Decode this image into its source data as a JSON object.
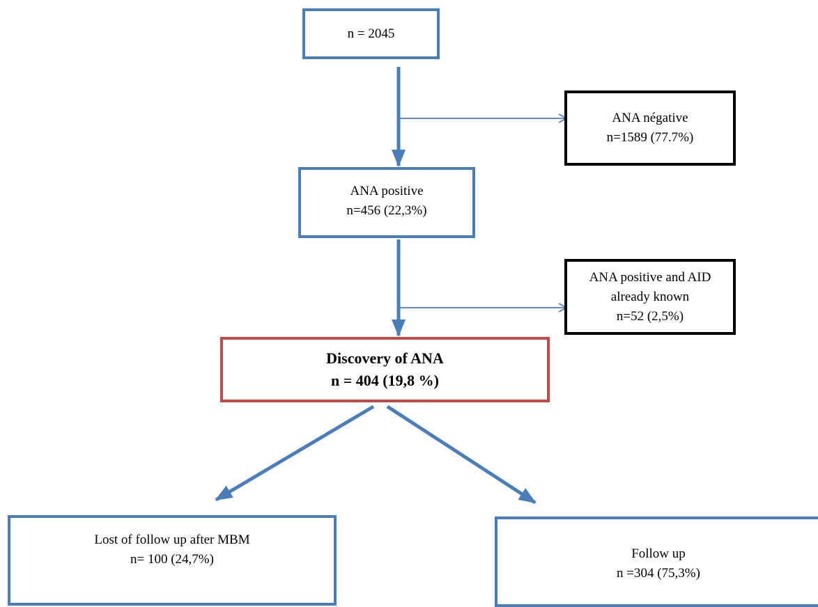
{
  "colors": {
    "primary_border": "#4a7ebb",
    "exclusion_border": "#000000",
    "highlight_border": "#be4b48",
    "arrow": "#4a7ebb"
  },
  "nodes": {
    "total": {
      "line1": "n = 2045"
    },
    "ana_negative": {
      "line1": "ANA négative",
      "line2": "n=1589 (77.7%)"
    },
    "ana_positive": {
      "line1": "ANA positive",
      "line2": "n=456 (22,3%)"
    },
    "aid_known": {
      "line1": "ANA positive and AID",
      "line2": "already known",
      "line3": "n=52 (2,5%)"
    },
    "discovery": {
      "line1": "Discovery of ANA",
      "line2": "n = 404 (19,8 %)"
    },
    "lost_follow_up": {
      "line1": "Lost of follow up after MBM",
      "line2": "n= 100 (24,7%)"
    },
    "follow_up": {
      "line1": "Follow up",
      "line2": "n =304 (75,3%)"
    }
  }
}
